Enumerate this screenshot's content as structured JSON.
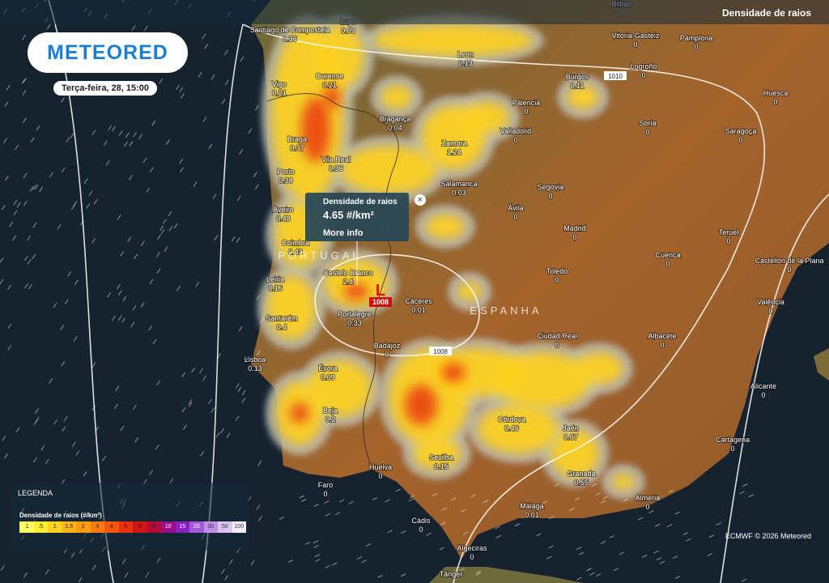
{
  "header": {
    "layer": "Densidade de raios",
    "logo": "METEORED",
    "date": "Terça-feira, 28, 15:00"
  },
  "popup": {
    "title": "Densidade de raios",
    "value": "4.65 #/km²",
    "link": "More info"
  },
  "countries": [
    "PORTUGAL",
    "ESPANHA"
  ],
  "pressure": {
    "isobars": [
      "1010",
      "1008"
    ],
    "low": {
      "symbol": "L",
      "value": "1008"
    }
  },
  "cities": [
    {
      "name": "Bilbao",
      "value": "0"
    },
    {
      "name": "Lugo",
      "value": "0.09"
    },
    {
      "name": "Santiago de Compostela",
      "value": "0.36"
    },
    {
      "name": "Vitoria-Gasteiz",
      "value": "0"
    },
    {
      "name": "Pamplona",
      "value": "0"
    },
    {
      "name": "Leon",
      "value": "0.13"
    },
    {
      "name": "Logroño",
      "value": "0"
    },
    {
      "name": "Ourense",
      "value": "0.21"
    },
    {
      "name": "Vigo",
      "value": "0.21"
    },
    {
      "name": "Burgos",
      "value": "0.11"
    },
    {
      "name": "Huesca",
      "value": "0"
    },
    {
      "name": "Palencia",
      "value": "0"
    },
    {
      "name": "Bragança",
      "value": "0.04"
    },
    {
      "name": "Soria",
      "value": "0"
    },
    {
      "name": "Saragoça",
      "value": "0"
    },
    {
      "name": "Valladolid",
      "value": "0"
    },
    {
      "name": "Braga",
      "value": "0.37"
    },
    {
      "name": "Zamora",
      "value": "1.24"
    },
    {
      "name": "Vila Real",
      "value": "0.36"
    },
    {
      "name": "Porto",
      "value": "0.38"
    },
    {
      "name": "Segovia",
      "value": "0"
    },
    {
      "name": "Salamanca",
      "value": "0.03"
    },
    {
      "name": "Ávila",
      "value": "0"
    },
    {
      "name": "Aveiro",
      "value": "0.48"
    },
    {
      "name": "Madrid",
      "value": "0"
    },
    {
      "name": "Teruel",
      "value": "0"
    },
    {
      "name": "Coimbra",
      "value": "0.43"
    },
    {
      "name": "Cuenca",
      "value": "0"
    },
    {
      "name": "Castellon de la Plana",
      "value": "0"
    },
    {
      "name": "Toledo",
      "value": "0"
    },
    {
      "name": "Castelo Branco",
      "value": "2.4"
    },
    {
      "name": "Leiria",
      "value": "0.16"
    },
    {
      "name": "Cáceres",
      "value": "0.01"
    },
    {
      "name": "Valência",
      "value": "0"
    },
    {
      "name": "Portalegre",
      "value": "0.33"
    },
    {
      "name": "Santarém",
      "value": "0.4"
    },
    {
      "name": "Albacete",
      "value": "0"
    },
    {
      "name": "Ciudad Real",
      "value": "0"
    },
    {
      "name": "Badajoz",
      "value": "0"
    },
    {
      "name": "Lisboa",
      "value": "0.13"
    },
    {
      "name": "Évora",
      "value": "0.09"
    },
    {
      "name": "Alicante",
      "value": "0"
    },
    {
      "name": "Beja",
      "value": "0.2"
    },
    {
      "name": "Córdova",
      "value": "0.46"
    },
    {
      "name": "Jaén",
      "value": "0.07"
    },
    {
      "name": "Cartagena",
      "value": "0"
    },
    {
      "name": "Sevilha",
      "value": "0.15"
    },
    {
      "name": "Huelva",
      "value": "0"
    },
    {
      "name": "Granada",
      "value": "0.55"
    },
    {
      "name": "Faro",
      "value": "0"
    },
    {
      "name": "Almeria",
      "value": "0"
    },
    {
      "name": "Málaga",
      "value": "0.01"
    },
    {
      "name": "Cádis",
      "value": "0"
    },
    {
      "name": "Algeciras",
      "value": "0"
    },
    {
      "name": "Tânger",
      "value": ""
    }
  ],
  "legend": {
    "title": "LEGENDA",
    "scale_title": "Densidade de raios (#/km²)",
    "stops": [
      {
        "label": ".1",
        "color": "#ffff66"
      },
      {
        "label": ".5",
        "color": "#ffee33"
      },
      {
        "label": "1",
        "color": "#ffd21f"
      },
      {
        "label": "1.5",
        "color": "#ffb21a"
      },
      {
        "label": "2",
        "color": "#ff9a14"
      },
      {
        "label": "3",
        "color": "#ff7a10"
      },
      {
        "label": "4",
        "color": "#f5560e"
      },
      {
        "label": "5",
        "color": "#e8300f"
      },
      {
        "label": "6",
        "color": "#d11414"
      },
      {
        "label": "8",
        "color": "#b40d3a"
      },
      {
        "label": "10",
        "color": "#9b0c8a"
      },
      {
        "label": "15",
        "color": "#8a1fc8"
      },
      {
        "label": "20",
        "color": "#a35ad8"
      },
      {
        "label": "30",
        "color": "#c090e6"
      },
      {
        "label": "50",
        "color": "#dcc4f0"
      },
      {
        "label": "100",
        "color": "#f4eefa"
      }
    ]
  },
  "footer": "ECMWF © 2026 Meteored"
}
